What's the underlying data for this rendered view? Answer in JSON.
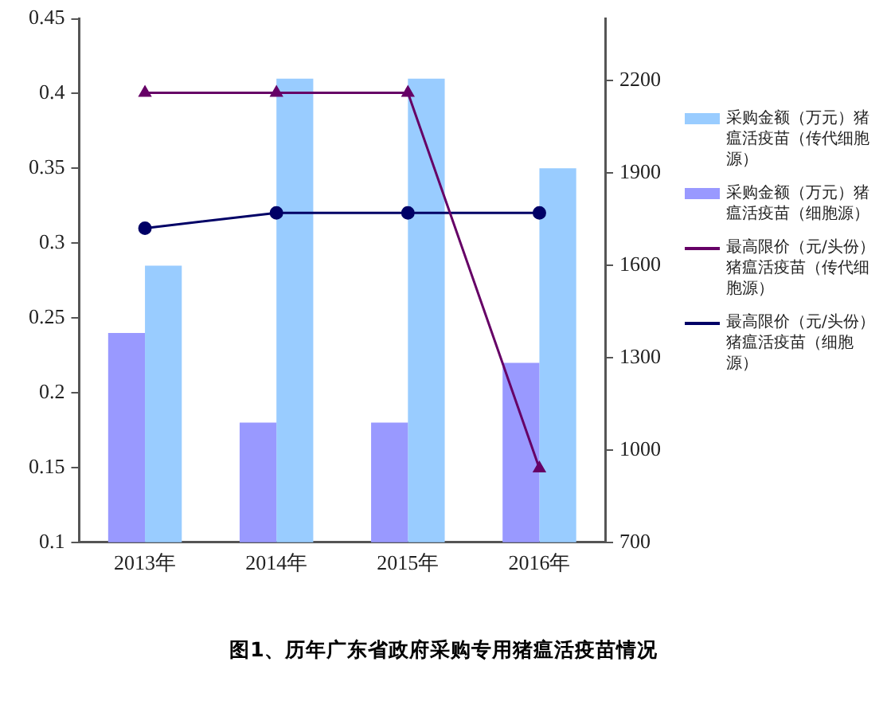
{
  "chart_data": {
    "type": "bar",
    "title": "图1、历年广东省政府采购专用猪瘟活疫苗情况",
    "categories": [
      "2013年",
      "2014年",
      "2015年",
      "2016年"
    ],
    "series": [
      {
        "name": "采购金额（万元）猪瘟活疫苗（传代细胞源）",
        "color": "#99ccff",
        "values": [
          0.285,
          0.41,
          0.41,
          0.35
        ]
      },
      {
        "name": "采购金额（万元）猪瘟活疫苗（细胞源）",
        "color": "#9999ff",
        "values": [
          0.24,
          0.18,
          0.18,
          0.22
        ]
      },
      {
        "name": "最高限价（元/头份）猪瘟活疫苗（传代细胞源）",
        "type": "line",
        "axis": "y2",
        "marker": "triangle",
        "color": "#660066",
        "values": [
          2160,
          2160,
          2160,
          940
        ]
      },
      {
        "name": "最高限价（元/头份）猪瘟活疫苗（细胞源）",
        "type": "line",
        "axis": "y2",
        "marker": "circle",
        "color": "#000066",
        "values": [
          1720,
          1770,
          1770,
          1770
        ]
      }
    ],
    "ylim": [
      0.1,
      0.45
    ],
    "yticks": [
      0.1,
      0.15,
      0.2,
      0.25,
      0.3,
      0.35,
      0.4,
      0.45
    ],
    "y2lim": [
      700,
      2400
    ],
    "y2ticks": [
      700,
      1000,
      1300,
      1600,
      1900,
      2200
    ],
    "grid": false,
    "legend": "right",
    "line_style": "solid"
  }
}
